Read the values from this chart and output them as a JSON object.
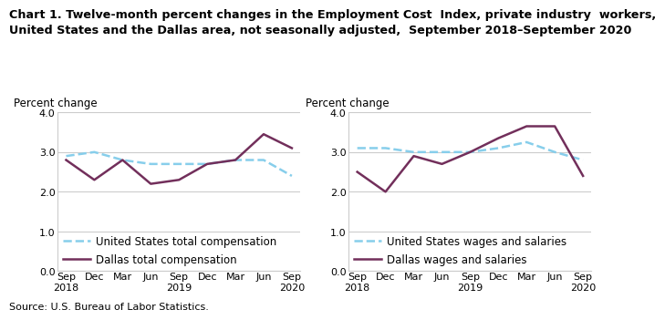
{
  "title_line1": "Chart 1. Twelve-month percent changes in the Employment Cost  Index, private industry  workers,",
  "title_line2": "United States and the Dallas area, not seasonally adjusted,  September 2018–September 2020",
  "source": "Source: U.S. Bureau of Labor Statistics.",
  "ylabel": "Percent change",
  "x_labels": [
    "Sep\n2018",
    "Dec",
    "Mar",
    "Jun",
    "Sep\n2019",
    "Dec",
    "Mar",
    "Jun",
    "Sep\n2020"
  ],
  "ylim": [
    0.0,
    4.0
  ],
  "yticks": [
    0.0,
    1.0,
    2.0,
    3.0,
    4.0
  ],
  "left_us_data": [
    2.9,
    3.0,
    2.8,
    2.7,
    2.7,
    2.7,
    2.8,
    2.8,
    2.4
  ],
  "left_dallas_data": [
    2.8,
    2.3,
    2.8,
    2.2,
    2.3,
    2.7,
    2.8,
    3.45,
    3.1
  ],
  "right_us_data": [
    3.1,
    3.1,
    3.0,
    3.0,
    3.0,
    3.1,
    3.25,
    3.0,
    2.8
  ],
  "right_dallas_data": [
    2.5,
    2.0,
    2.9,
    2.7,
    3.0,
    3.35,
    3.65,
    3.65,
    2.4
  ],
  "us_color": "#87CEEB",
  "dallas_color": "#722F5B",
  "us_linestyle": "--",
  "dallas_linestyle": "-",
  "left_legend_us": "United States total compensation",
  "left_legend_dallas": "Dallas total compensation",
  "right_legend_us": "United States wages and salaries",
  "right_legend_dallas": "Dallas wages and salaries",
  "linewidth": 1.8,
  "grid_color": "#cccccc",
  "bg_color": "#ffffff",
  "title_fontsize": 9.2,
  "axis_label_fontsize": 8.5,
  "tick_fontsize": 8.0,
  "legend_fontsize": 8.5
}
